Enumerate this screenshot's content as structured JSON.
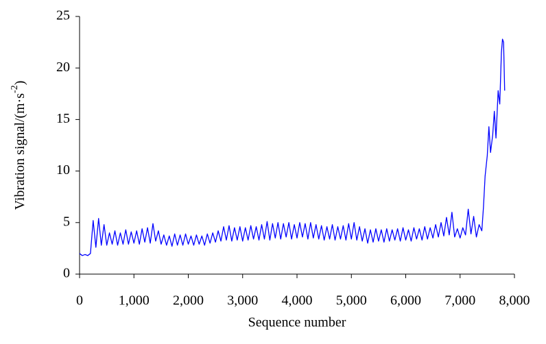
{
  "chart_data": {
    "type": "line",
    "x_label": "Sequence number",
    "y_label": {
      "text": "Vibration signal/(m·s",
      "sup": "-2",
      "end": ")"
    },
    "xlim": [
      0,
      8000
    ],
    "ylim": [
      0,
      25
    ],
    "xticks": [
      0,
      {
        "value": 1000,
        "label": "1,000"
      },
      {
        "value": 2000,
        "label": "2,000"
      },
      {
        "value": 3000,
        "label": "3,000"
      },
      {
        "value": 4000,
        "label": "4,000"
      },
      {
        "value": 5000,
        "label": "5,000"
      },
      {
        "value": 6000,
        "label": "6,000"
      },
      {
        "value": 7000,
        "label": "7,000"
      },
      {
        "value": 8000,
        "label": "8,000"
      }
    ],
    "yticks": [
      0,
      5,
      10,
      15,
      20,
      25
    ],
    "grid": false,
    "x": [
      0,
      50,
      100,
      150,
      200,
      250,
      300,
      350,
      400,
      450,
      500,
      550,
      600,
      650,
      700,
      750,
      800,
      850,
      900,
      950,
      1000,
      1050,
      1100,
      1150,
      1200,
      1250,
      1300,
      1350,
      1400,
      1450,
      1500,
      1550,
      1600,
      1650,
      1700,
      1750,
      1800,
      1850,
      1900,
      1950,
      2000,
      2050,
      2100,
      2150,
      2200,
      2250,
      2300,
      2350,
      2400,
      2450,
      2500,
      2550,
      2600,
      2650,
      2700,
      2750,
      2800,
      2850,
      2900,
      2950,
      3000,
      3050,
      3100,
      3150,
      3200,
      3250,
      3300,
      3350,
      3400,
      3450,
      3500,
      3550,
      3600,
      3650,
      3700,
      3750,
      3800,
      3850,
      3900,
      3950,
      4000,
      4050,
      4100,
      4150,
      4200,
      4250,
      4300,
      4350,
      4400,
      4450,
      4500,
      4550,
      4600,
      4650,
      4700,
      4750,
      4800,
      4850,
      4900,
      4950,
      5000,
      5050,
      5100,
      5150,
      5200,
      5250,
      5300,
      5350,
      5400,
      5450,
      5500,
      5550,
      5600,
      5650,
      5700,
      5750,
      5800,
      5850,
      5900,
      5950,
      6000,
      6050,
      6100,
      6150,
      6200,
      6250,
      6300,
      6350,
      6400,
      6450,
      6500,
      6550,
      6600,
      6650,
      6700,
      6750,
      6800,
      6850,
      6900,
      6950,
      7000,
      7050,
      7100,
      7150,
      7200,
      7250,
      7300,
      7350,
      7400,
      7430,
      7460,
      7500,
      7530,
      7560,
      7600,
      7630,
      7660,
      7700,
      7730,
      7760,
      7780,
      7800,
      7820
    ],
    "series": [
      {
        "color": "#0000ff",
        "values": [
          2.0,
          1.8,
          1.9,
          1.8,
          2.0,
          5.2,
          2.6,
          5.4,
          2.8,
          4.8,
          2.8,
          4.0,
          2.9,
          4.2,
          2.8,
          4.0,
          2.9,
          4.3,
          2.9,
          4.1,
          3.0,
          4.2,
          2.9,
          4.4,
          3.1,
          4.5,
          3.0,
          4.9,
          3.2,
          4.2,
          2.9,
          3.8,
          2.8,
          3.7,
          2.7,
          3.9,
          2.8,
          3.8,
          2.8,
          3.9,
          2.9,
          3.7,
          2.8,
          3.8,
          2.9,
          3.7,
          2.8,
          3.9,
          3.0,
          4.0,
          3.1,
          4.2,
          3.2,
          4.6,
          3.3,
          4.7,
          3.2,
          4.5,
          3.3,
          4.6,
          3.2,
          4.5,
          3.3,
          4.7,
          3.4,
          4.6,
          3.3,
          4.8,
          3.4,
          5.1,
          3.3,
          4.9,
          3.5,
          5.0,
          3.4,
          4.9,
          3.6,
          5.0,
          3.4,
          4.8,
          3.5,
          5.0,
          3.6,
          4.9,
          3.4,
          5.0,
          3.5,
          4.8,
          3.4,
          4.7,
          3.3,
          4.6,
          3.4,
          4.8,
          3.3,
          4.6,
          3.4,
          4.7,
          3.3,
          4.9,
          3.4,
          5.0,
          3.3,
          4.6,
          3.2,
          4.4,
          3.0,
          4.3,
          3.1,
          4.4,
          3.2,
          4.3,
          3.1,
          4.4,
          3.2,
          4.3,
          3.3,
          4.4,
          3.2,
          4.5,
          3.3,
          4.3,
          3.2,
          4.5,
          3.4,
          4.4,
          3.3,
          4.6,
          3.4,
          4.5,
          3.5,
          4.8,
          3.6,
          5.0,
          3.7,
          5.5,
          3.8,
          6.0,
          3.6,
          4.4,
          3.5,
          4.5,
          3.8,
          6.3,
          3.9,
          5.6,
          3.6,
          4.8,
          4.2,
          6.5,
          9.5,
          11.5,
          14.3,
          11.8,
          13.5,
          15.8,
          13.2,
          17.8,
          16.5,
          21.5,
          22.8,
          22.5,
          17.8
        ]
      }
    ]
  }
}
